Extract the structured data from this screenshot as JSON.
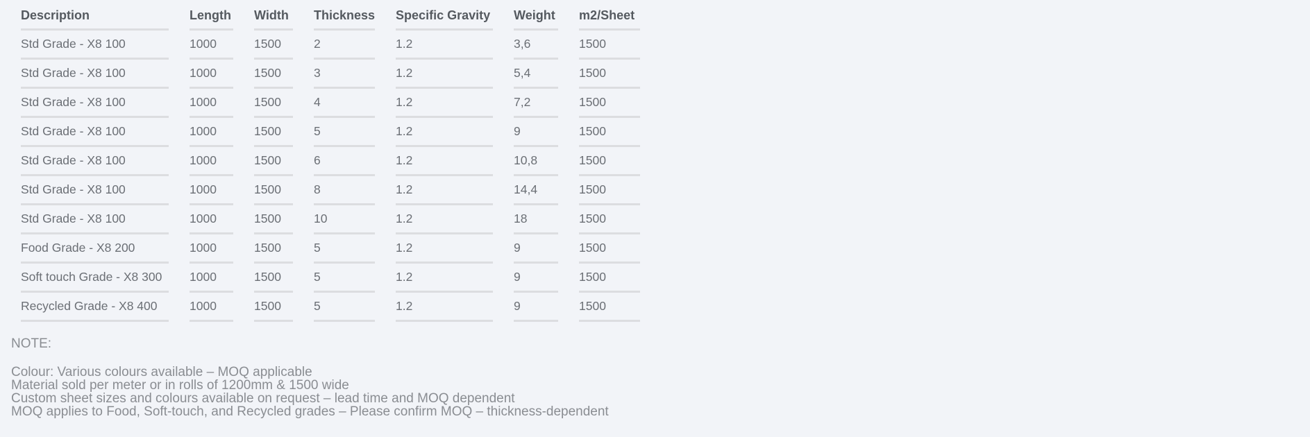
{
  "table": {
    "headers": [
      "Description",
      "Length",
      "Width",
      "Thickness",
      "Specific Gravity",
      "Weight",
      "m2/Sheet"
    ],
    "rows": [
      [
        "Std Grade - X8 100",
        "1000",
        "1500",
        "2",
        "1.2",
        "3,6",
        "1500"
      ],
      [
        "Std Grade - X8 100",
        "1000",
        "1500",
        "3",
        "1.2",
        "5,4",
        "1500"
      ],
      [
        "Std Grade - X8 100",
        "1000",
        "1500",
        "4",
        "1.2",
        "7,2",
        "1500"
      ],
      [
        "Std Grade - X8 100",
        "1000",
        "1500",
        "5",
        "1.2",
        "9",
        "1500"
      ],
      [
        "Std Grade - X8 100",
        "1000",
        "1500",
        "6",
        "1.2",
        "10,8",
        "1500"
      ],
      [
        "Std Grade - X8 100",
        "1000",
        "1500",
        "8",
        "1.2",
        "14,4",
        "1500"
      ],
      [
        "Std Grade - X8 100",
        "1000",
        "1500",
        "10",
        "1.2",
        "18",
        "1500"
      ],
      [
        "Food Grade - X8 200",
        "1000",
        "1500",
        "5",
        "1.2",
        "9",
        "1500"
      ],
      [
        "Soft touch Grade - X8 300",
        "1000",
        "1500",
        "5",
        "1.2",
        "9",
        "1500"
      ],
      [
        "Recycled Grade - X8 400",
        "1000",
        "1500",
        "5",
        "1.2",
        "9",
        "1500"
      ]
    ]
  },
  "notes": {
    "title": "NOTE:",
    "lines": [
      "Colour: Various colours available – MOQ applicable",
      "Material sold per meter or in rolls of 1200mm & 1500 wide",
      "Custom sheet sizes and colours available on request – lead time and MOQ dependent",
      "MOQ applies to Food, Soft-touch, and Recycled grades – Please confirm MOQ – thickness-dependent"
    ]
  }
}
